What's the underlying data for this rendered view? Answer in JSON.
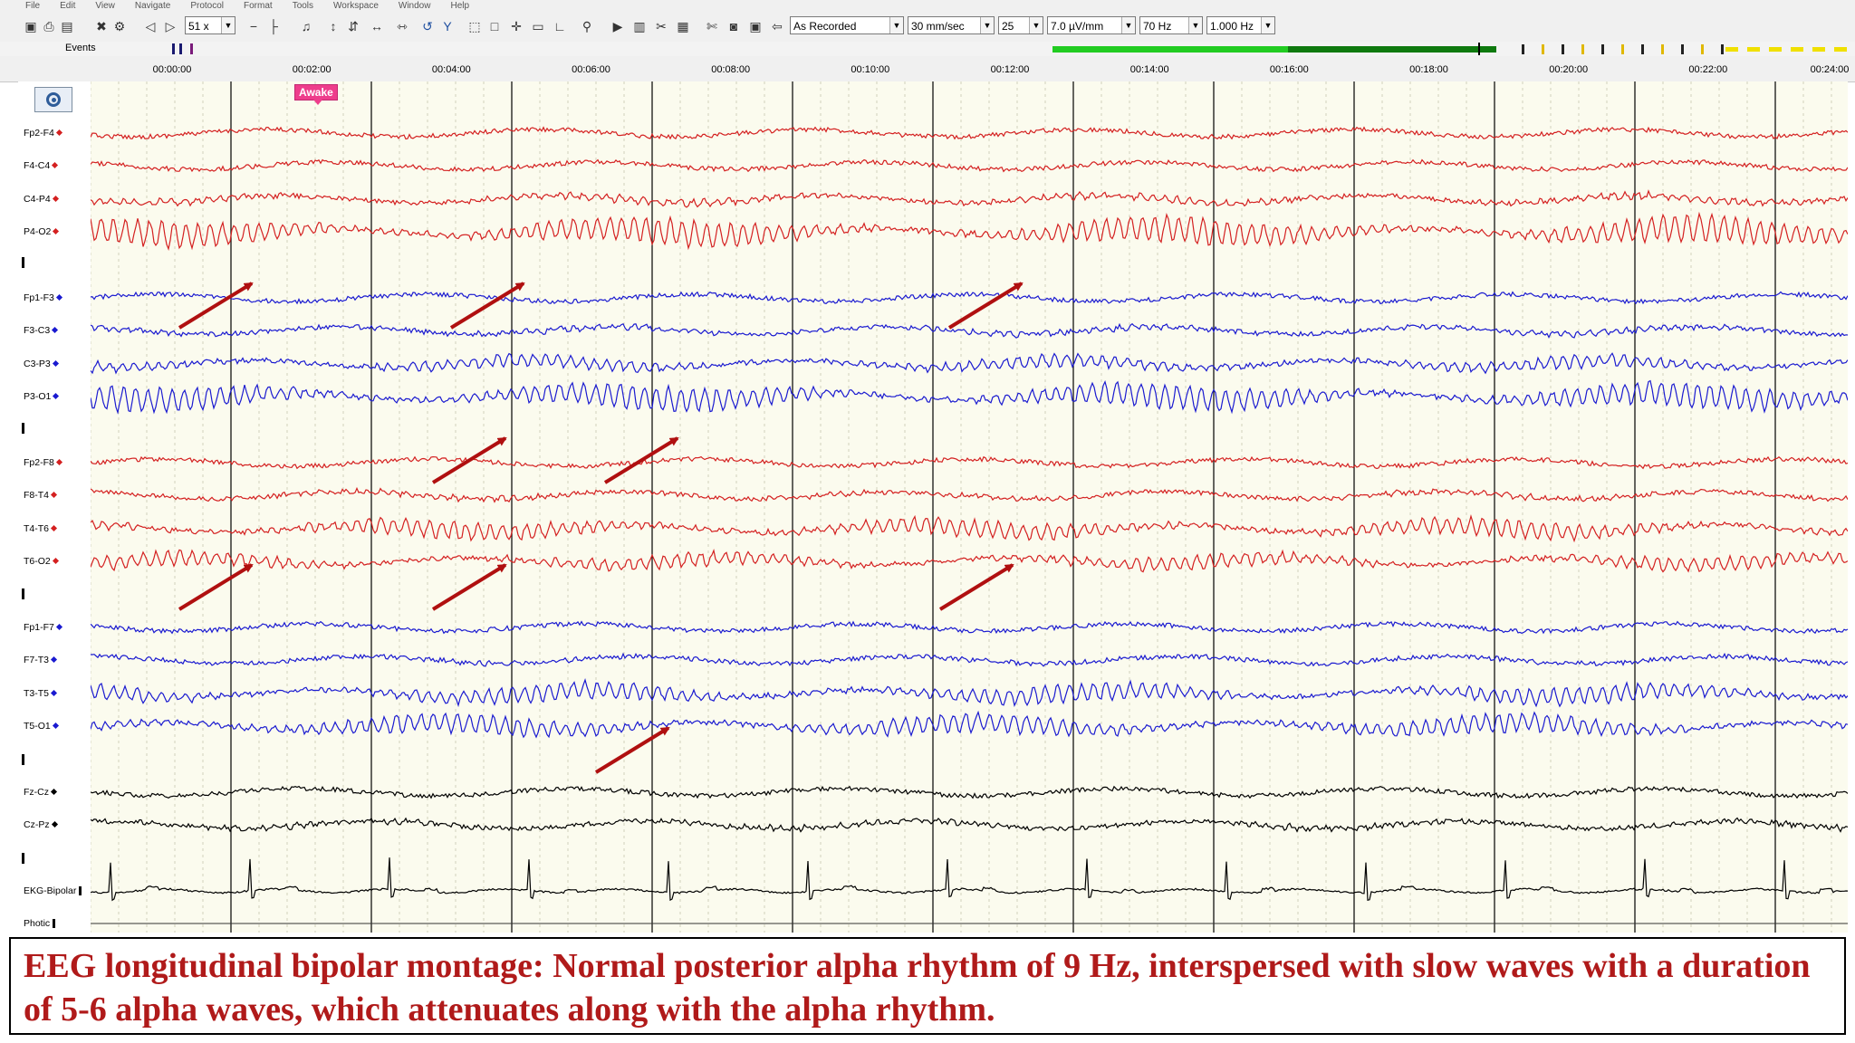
{
  "menu": [
    "File",
    "Edit",
    "View",
    "Navigate",
    "Protocol",
    "Format",
    "Tools",
    "Workspace",
    "Window",
    "Help"
  ],
  "toolbar": {
    "zoom": "51 x",
    "montage": "As Recorded",
    "speed": "30 mm/sec",
    "channels_per_page": "25",
    "sensitivity": "7.0 µV/mm",
    "high_filter": "70 Hz",
    "low_filter": "1.000 Hz"
  },
  "events_label": "Events",
  "annotation": "Awake",
  "time_ticks": [
    "00:00:00",
    "00:02:00",
    "00:04:00",
    "00:06:00",
    "00:08:00",
    "00:10:00",
    "00:12:00",
    "00:14:00",
    "00:16:00",
    "00:18:00",
    "00:20:00",
    "00:22:00",
    "00:24:00"
  ],
  "colors": {
    "right_chain": "#d42020",
    "left_chain": "#1a1ad0",
    "midline": "#000000",
    "arrow": "#b01010",
    "awake_tag": "#ee3d8c",
    "caption_text": "#b01a1a"
  },
  "channels": [
    {
      "label": "Fp2-F4",
      "side": "right"
    },
    {
      "label": "F4-C4",
      "side": "right"
    },
    {
      "label": "C4-P4",
      "side": "right"
    },
    {
      "label": "P4-O2",
      "side": "right"
    },
    {
      "label": "Fp1-F3",
      "side": "left"
    },
    {
      "label": "F3-C3",
      "side": "left"
    },
    {
      "label": "C3-P3",
      "side": "left"
    },
    {
      "label": "P3-O1",
      "side": "left"
    },
    {
      "label": "Fp2-F8",
      "side": "right"
    },
    {
      "label": "F8-T4",
      "side": "right"
    },
    {
      "label": "T4-T6",
      "side": "right"
    },
    {
      "label": "T6-O2",
      "side": "right"
    },
    {
      "label": "Fp1-F7",
      "side": "left"
    },
    {
      "label": "F7-T3",
      "side": "left"
    },
    {
      "label": "T3-T5",
      "side": "left"
    },
    {
      "label": "T5-O1",
      "side": "left"
    },
    {
      "label": "Fz-Cz",
      "side": "mid"
    },
    {
      "label": "Cz-Pz",
      "side": "mid"
    },
    {
      "label": "EKG-Bipolar",
      "side": "ekg"
    },
    {
      "label": "Photic",
      "side": "photic"
    }
  ],
  "caption": "EEG longitudinal bipolar montage: Normal posterior alpha rhythm of 9 Hz, interspersed with slow waves with a duration of 5-6 alpha waves, which attenuates along with the alpha rhythm."
}
